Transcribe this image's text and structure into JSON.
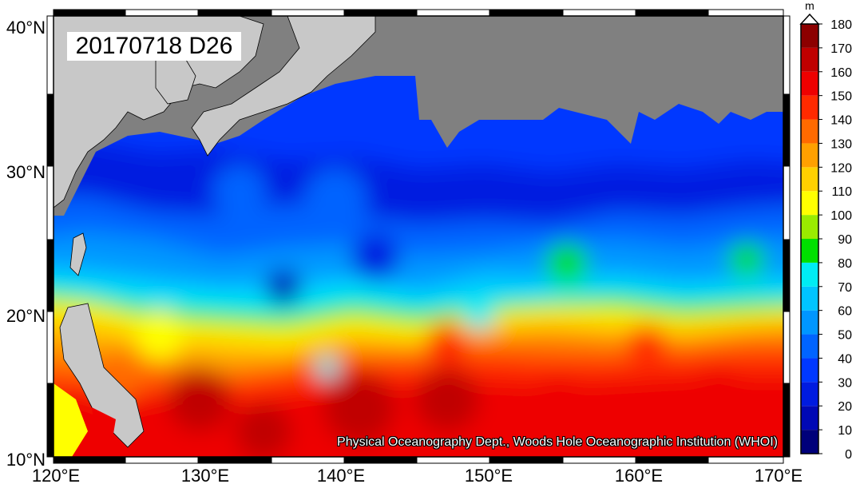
{
  "map": {
    "date_label": "20170718 D26",
    "credit": "Physical Oceanography Dept., Woods Hole Oceanographic Institution (WHOI)",
    "lat_labels": [
      "40°N",
      "30°N",
      "20°N",
      "10°N"
    ],
    "lon_labels": [
      "120°E",
      "130°E",
      "140°E",
      "150°E",
      "160°E",
      "170°E"
    ],
    "land_color": "#808080",
    "outside_land_color": "#c8c8c8"
  },
  "colorbar": {
    "unit": "m",
    "ticks": [
      "0",
      "10",
      "20",
      "30",
      "40",
      "50",
      "60",
      "70",
      "80",
      "90",
      "100",
      "110",
      "120",
      "130",
      "140",
      "150",
      "160",
      "170",
      "180"
    ],
    "colors": [
      "#00007a",
      "#0008b5",
      "#001be0",
      "#0038ff",
      "#0064ff",
      "#0096ff",
      "#00c4ff",
      "#00ecf4",
      "#00e000",
      "#9aeb00",
      "#ffff00",
      "#ffd000",
      "#ffa000",
      "#ff6a00",
      "#ff2a00",
      "#ee0000",
      "#c00000",
      "#8c0000",
      "#5a0000"
    ],
    "top_color": "#2a0000"
  }
}
